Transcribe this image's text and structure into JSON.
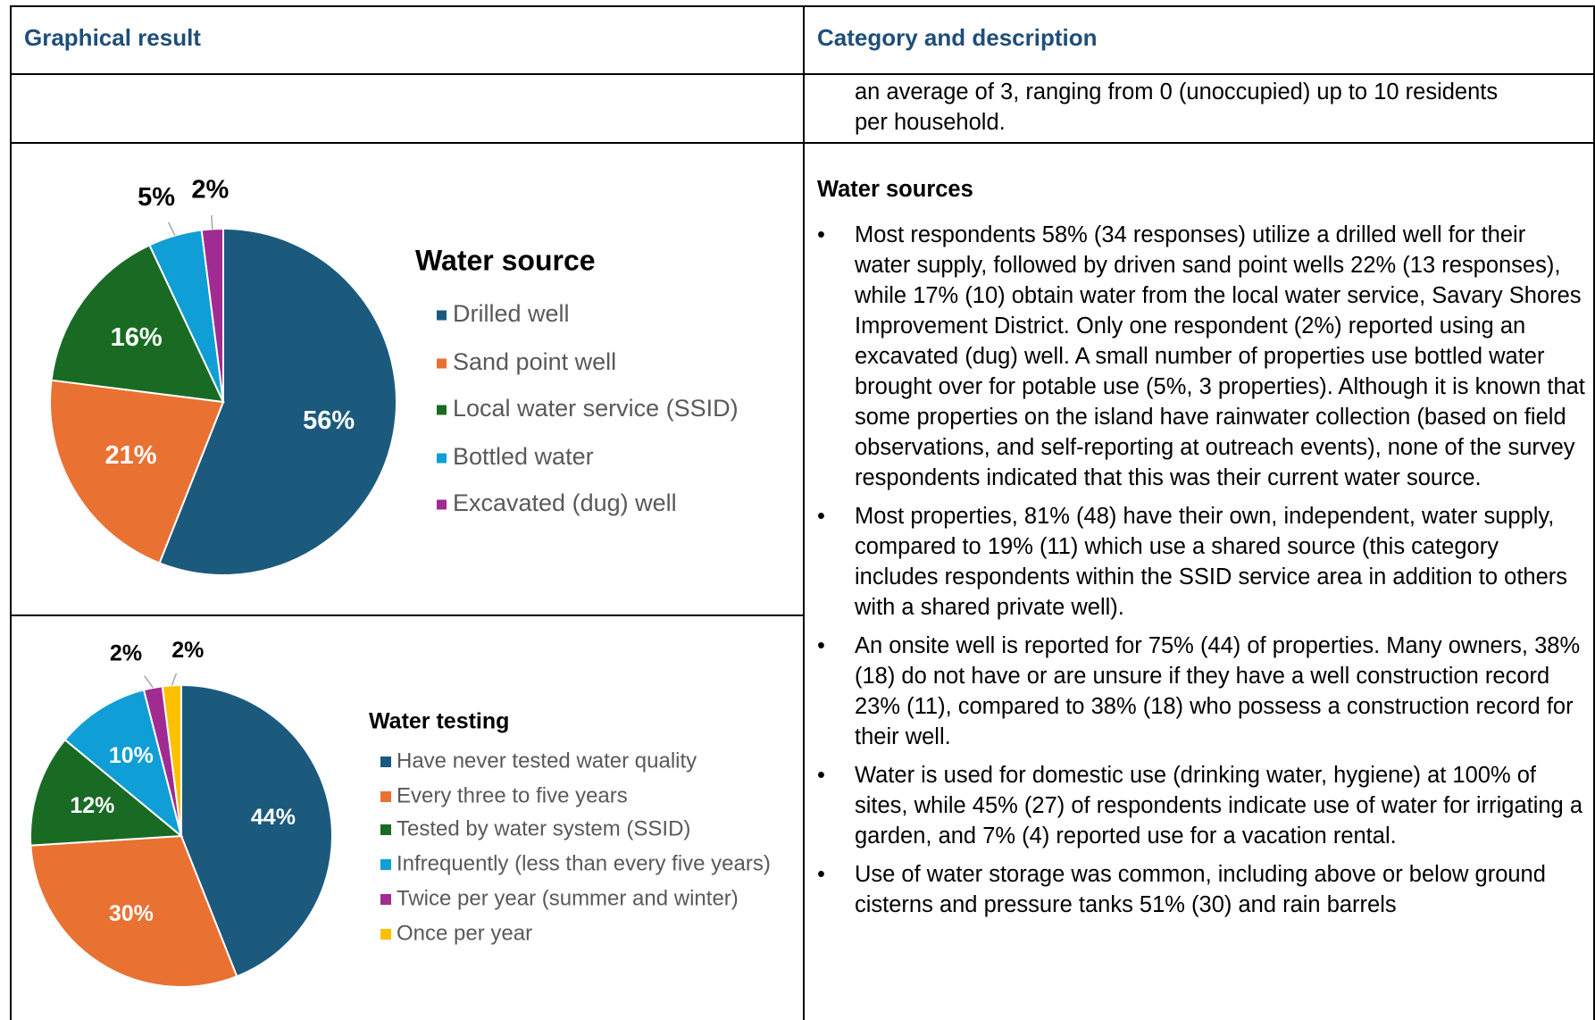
{
  "table": {
    "headers": [
      "Graphical result",
      "Category and description"
    ],
    "continued_text": "an average of 3, ranging from 0 (unoccupied) up to 10 residents per household.",
    "section_title": "Water sources",
    "bullets": [
      "Most respondents 58% (34 responses) utilize a drilled well for their water supply, followed by driven sand point wells 22% (13 responses), while 17% (10) obtain water from the local water service, Savary Shores Improvement District. Only one respondent (2%) reported using an excavated (dug) well. A small number of properties use bottled water brought over for potable use (5%, 3 properties). Although it is known that some properties on the island have rainwater collection (based on field observations, and self-reporting at outreach events), none of the survey respondents indicated that this was their current water source.",
      "Most properties, 81% (48) have their own, independent, water supply, compared to 19% (11) which use a shared source (this category includes respondents within the SSID service area in addition to others with a shared private well).",
      "An onsite well is reported for 75% (44) of properties. Many owners, 38% (18) do not have or are unsure if they have a well construction record 23% (11), compared to 38% (18) who possess a construction record for their well.",
      "Water is used for domestic use (drinking water, hygiene) at 100% of sites, while 45% (27) of respondents indicate use of water for irrigating a garden, and 7% (4) reported use for a vacation rental.",
      "Use of water storage was common, including above or below ground cisterns and pressure tanks 51% (30) and rain barrels"
    ]
  },
  "charts": [
    {
      "type": "pie",
      "title": "Water source",
      "categories": [
        "Drilled well",
        "Sand point well",
        "Local water service (SSID)",
        "Bottled water",
        "Excavated (dug) well"
      ],
      "values": [
        56,
        21,
        16,
        5,
        2
      ],
      "value_labels": [
        "56%",
        "21%",
        "16%",
        "5%",
        "2%"
      ],
      "colors": [
        "#1b5a7d",
        "#e97132",
        "#196b24",
        "#0f9ed5",
        "#a02b93"
      ]
    },
    {
      "type": "pie",
      "title": "Water testing",
      "categories": [
        "Have never tested water quality",
        "Every three to five years",
        "Tested by water system (SSID)",
        "Infrequently (less than every five years)",
        "Twice per year (summer and winter)",
        "Once per year"
      ],
      "values": [
        44,
        30,
        12,
        10,
        2,
        2
      ],
      "value_labels": [
        "44%",
        "30%",
        "12%",
        "10%",
        "2%",
        "2%"
      ],
      "colors": [
        "#1b5a7d",
        "#e97132",
        "#196b24",
        "#0f9ed5",
        "#a02b93",
        "#ffc000"
      ]
    }
  ]
}
